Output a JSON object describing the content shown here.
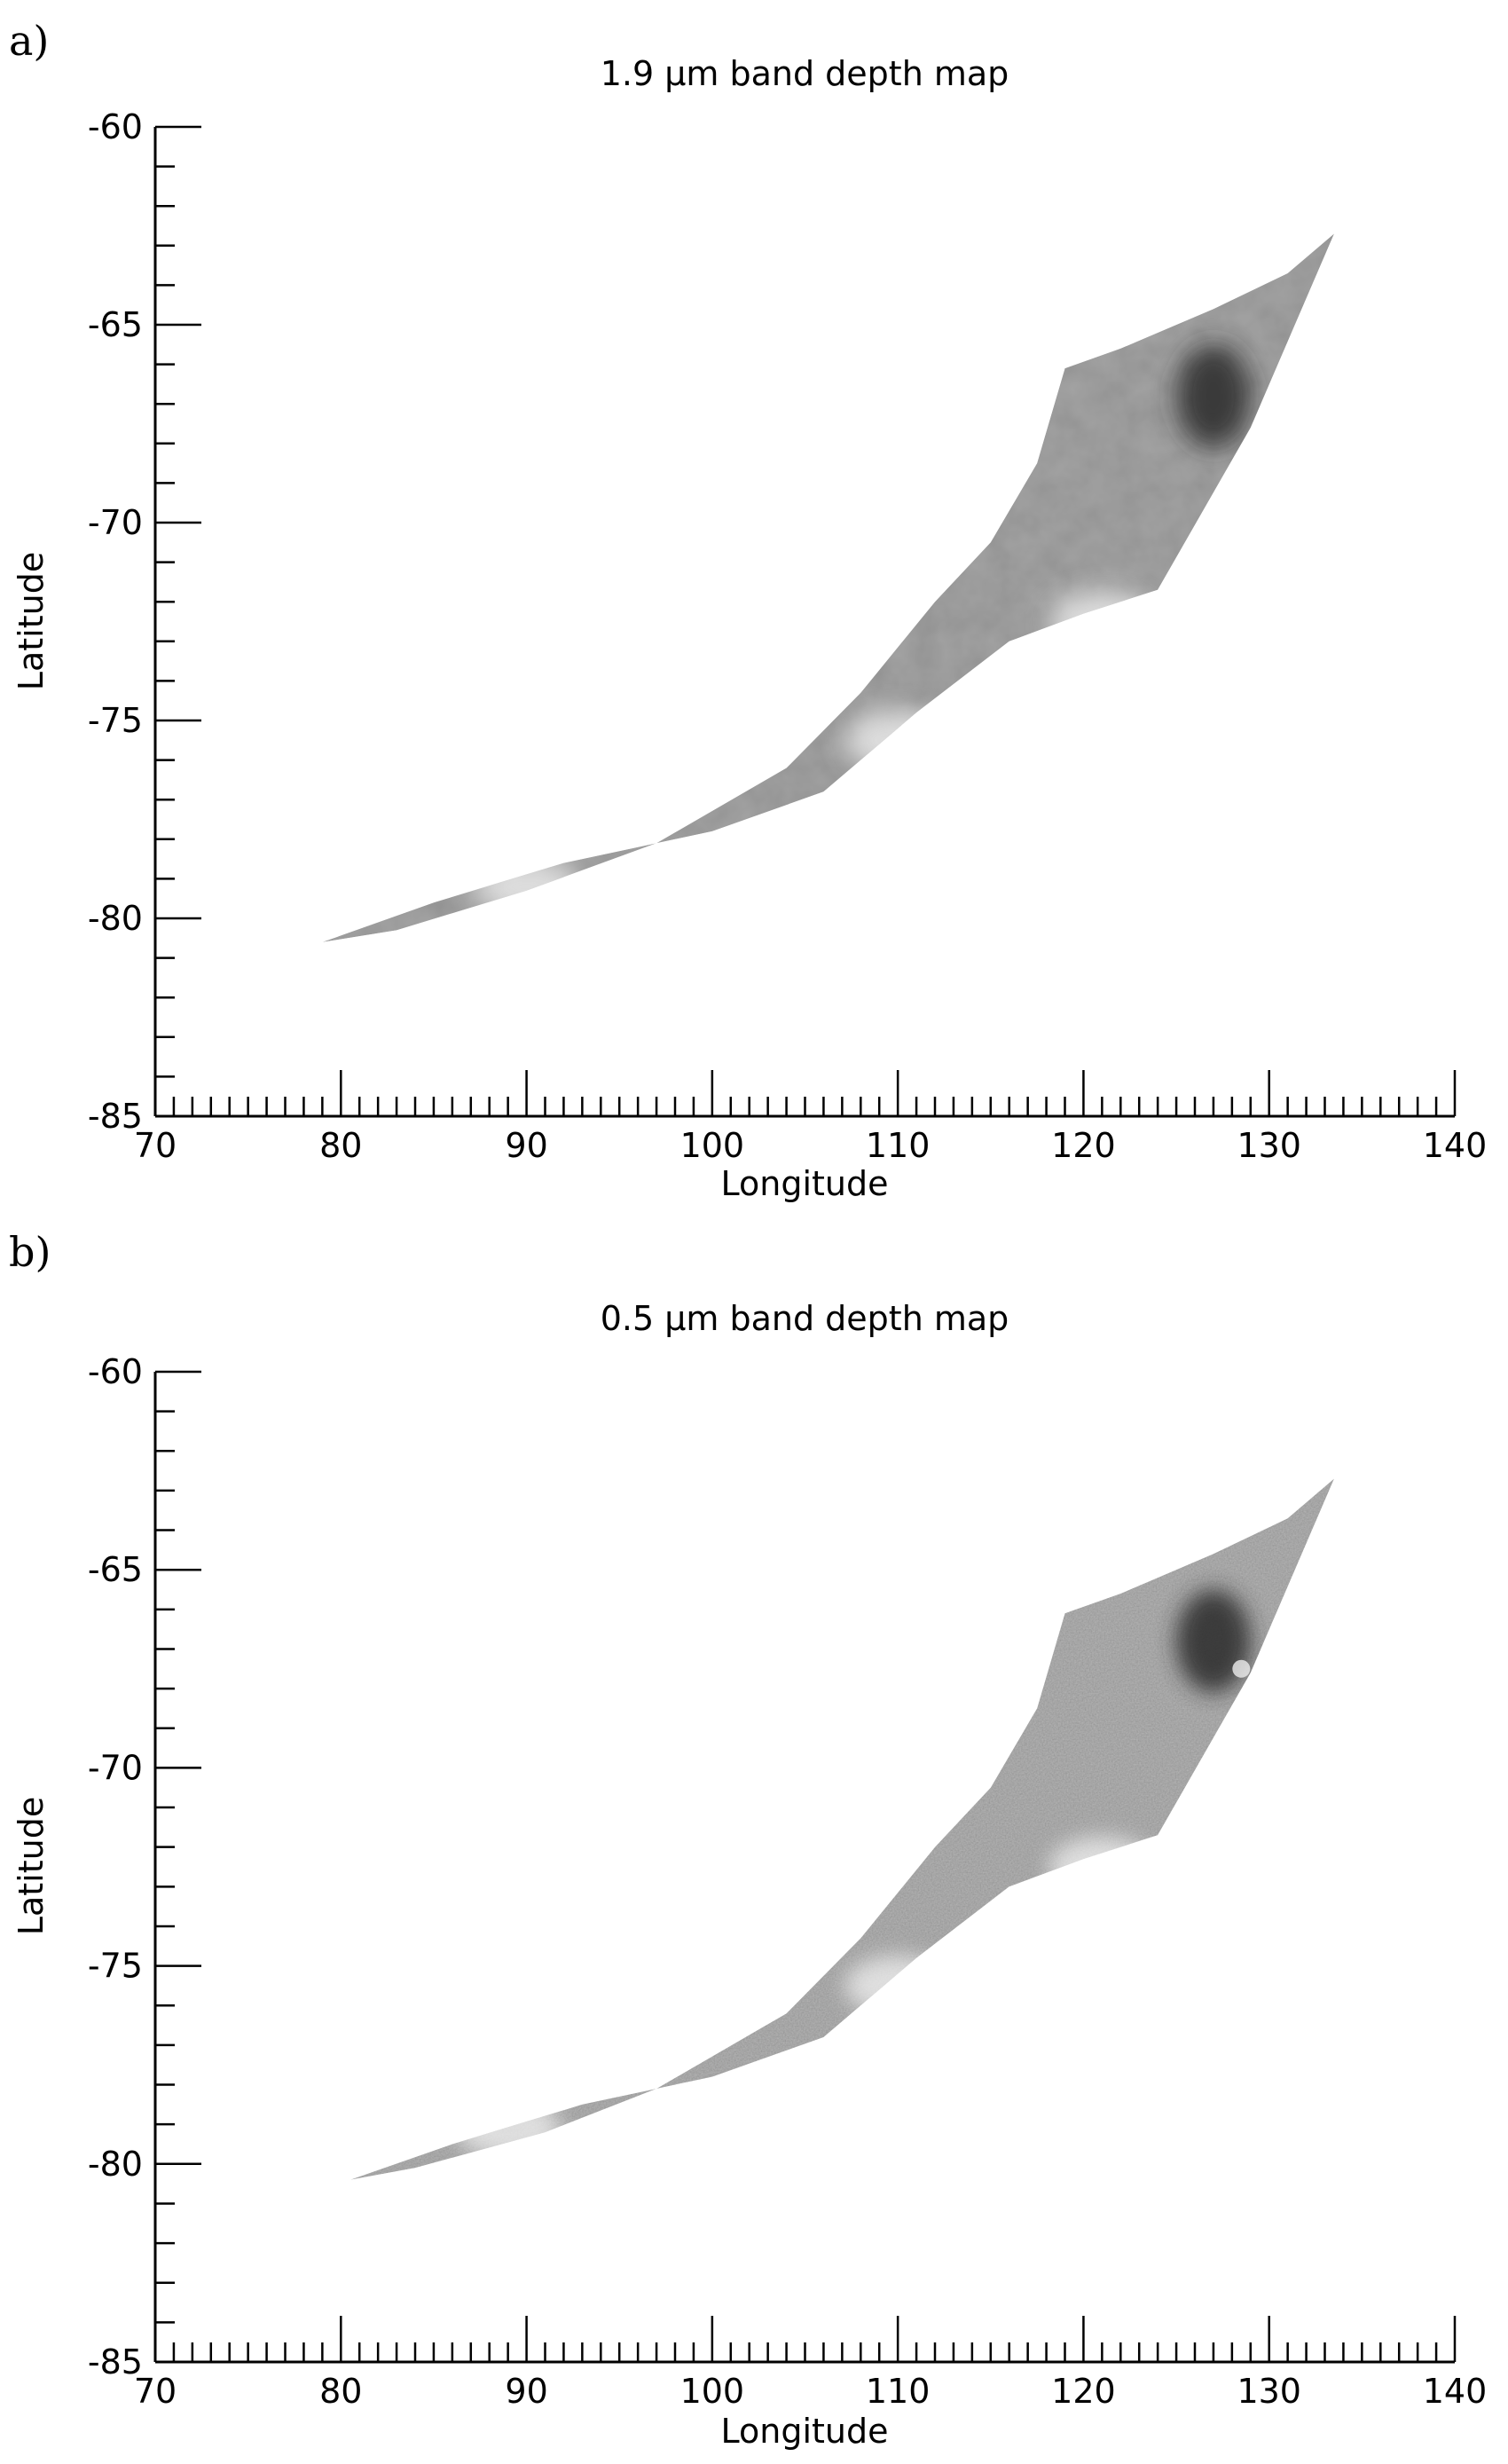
{
  "chart_data": [
    {
      "type": "heatmap",
      "panel_label": "a)",
      "title": "1.9 μm band depth map",
      "xlabel": "Longitude",
      "ylabel": "Latitude",
      "xlim": [
        70,
        140
      ],
      "ylim": [
        -85,
        -60
      ],
      "x_ticks": [
        "70",
        "80",
        "90",
        "100",
        "110",
        "120",
        "130",
        "140"
      ],
      "y_ticks": [
        "-60",
        "-65",
        "-70",
        "-75",
        "-80",
        "-85"
      ],
      "colormap": "grayscale",
      "coverage_outline": [
        [
          79,
          -80.6
        ],
        [
          85,
          -79.6
        ],
        [
          92,
          -78.6
        ],
        [
          100,
          -77.8
        ],
        [
          106,
          -76.8
        ],
        [
          111,
          -74.8
        ],
        [
          116,
          -73.0
        ],
        [
          120,
          -72.3
        ],
        [
          124,
          -71.7
        ],
        [
          129,
          -67.6
        ],
        [
          133.5,
          -62.7
        ],
        [
          131,
          -63.7
        ],
        [
          127,
          -64.6
        ],
        [
          122,
          -65.6
        ],
        [
          119,
          -66.1
        ],
        [
          117.5,
          -68.5
        ],
        [
          115,
          -70.5
        ],
        [
          112,
          -72.0
        ],
        [
          108,
          -74.3
        ],
        [
          104,
          -76.2
        ],
        [
          97,
          -78.1
        ],
        [
          90,
          -79.3
        ],
        [
          83,
          -80.3
        ]
      ],
      "features": [
        {
          "lon": 127,
          "lat": -66.8,
          "tone": "dark"
        },
        {
          "lon": 121,
          "lat": -72.5,
          "tone": "bright"
        },
        {
          "lon": 110,
          "lat": -75.5,
          "tone": "bright"
        },
        {
          "lon": 90,
          "lat": -79.2,
          "tone": "bright"
        }
      ]
    },
    {
      "type": "heatmap",
      "panel_label": "b)",
      "title": "0.5 μm band depth map",
      "xlabel": "Longitude",
      "ylabel": "Latitude",
      "xlim": [
        70,
        140
      ],
      "ylim": [
        -85,
        -60
      ],
      "x_ticks": [
        "70",
        "80",
        "90",
        "100",
        "110",
        "120",
        "130",
        "140"
      ],
      "y_ticks": [
        "-60",
        "-65",
        "-70",
        "-75",
        "-80",
        "-85"
      ],
      "colormap": "grayscale",
      "coverage_outline": [
        [
          80.5,
          -80.4
        ],
        [
          86,
          -79.5
        ],
        [
          93,
          -78.5
        ],
        [
          100,
          -77.8
        ],
        [
          106,
          -76.8
        ],
        [
          111,
          -74.8
        ],
        [
          116,
          -73.0
        ],
        [
          120,
          -72.3
        ],
        [
          124,
          -71.7
        ],
        [
          129,
          -67.6
        ],
        [
          133.5,
          -62.7
        ],
        [
          131,
          -63.7
        ],
        [
          127,
          -64.6
        ],
        [
          122,
          -65.6
        ],
        [
          119,
          -66.1
        ],
        [
          117.5,
          -68.5
        ],
        [
          115,
          -70.5
        ],
        [
          112,
          -72.0
        ],
        [
          108,
          -74.3
        ],
        [
          104,
          -76.2
        ],
        [
          97,
          -78.1
        ],
        [
          91,
          -79.2
        ],
        [
          84,
          -80.1
        ]
      ],
      "features": [
        {
          "lon": 127,
          "lat": -66.8,
          "tone": "dark"
        },
        {
          "lon": 128.5,
          "lat": -67.5,
          "tone": "bright"
        },
        {
          "lon": 121,
          "lat": -72.5,
          "tone": "bright"
        },
        {
          "lon": 110,
          "lat": -75.5,
          "tone": "bright"
        },
        {
          "lon": 89,
          "lat": -79.1,
          "tone": "bright"
        }
      ]
    }
  ]
}
